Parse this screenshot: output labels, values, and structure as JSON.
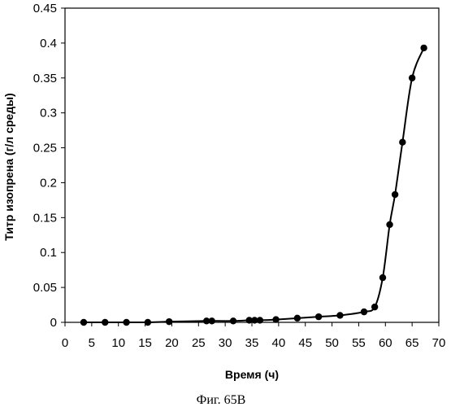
{
  "chart_data": {
    "type": "line",
    "xlabel": "Время (ч)",
    "ylabel": "Титр изопрена (г/л среды)",
    "xlim": [
      0,
      70
    ],
    "ylim": [
      0,
      0.45
    ],
    "xticks": [
      "0",
      "5",
      "10",
      "15",
      "20",
      "25",
      "30",
      "35",
      "40",
      "45",
      "50",
      "55",
      "60",
      "65",
      "70"
    ],
    "yticks": [
      "0",
      "0.05",
      "0.1",
      "0.15",
      "0.2",
      "0.25",
      "0.3",
      "0.35",
      "0.4",
      "0.45"
    ],
    "grid": false,
    "legend": "none",
    "series": [
      {
        "color": "#000000",
        "marker": "circle",
        "x": [
          3.5,
          7.5,
          11.5,
          15.5,
          19.5,
          26.5,
          27.5,
          31.5,
          34.5,
          35.5,
          36.5,
          39.5,
          43.5,
          47.5,
          51.5,
          56,
          58,
          59.5,
          60.8,
          61.8,
          63.2,
          65,
          67.2
        ],
        "y": [
          0.0,
          0.0,
          0.0,
          0.0,
          0.001,
          0.002,
          0.002,
          0.002,
          0.003,
          0.003,
          0.003,
          0.004,
          0.006,
          0.008,
          0.01,
          0.015,
          0.022,
          0.064,
          0.14,
          0.183,
          0.258,
          0.35,
          0.393
        ]
      }
    ]
  },
  "caption": "Фиг. 65В"
}
